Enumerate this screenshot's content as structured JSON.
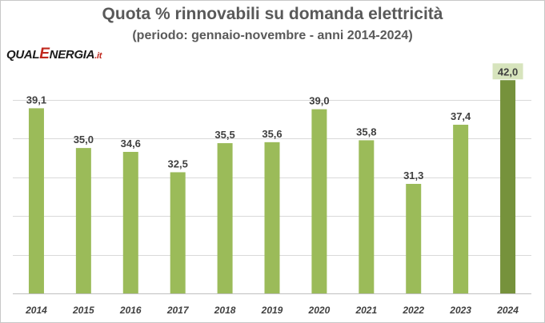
{
  "title": "Quota % rinnovabili su domanda elettricità",
  "subtitle": "(periodo: gennaio-novembre - anni 2014-2024)",
  "logo": {
    "part1": "QUAL",
    "part2": "E",
    "part3": "NERGIA",
    "part4": ".it"
  },
  "colors": {
    "bar": "#9bbb59",
    "highlight_bar": "#76923c",
    "highlight_label_bg": "#d7e4bd",
    "grid": "#d9d9d9",
    "text": "#404040"
  },
  "chart_data": {
    "type": "bar",
    "title": "Quota % rinnovabili su domanda elettricità",
    "subtitle": "(periodo: gennaio-novembre - anni 2014-2024)",
    "categories": [
      "2014",
      "2015",
      "2016",
      "2017",
      "2018",
      "2019",
      "2020",
      "2021",
      "2022",
      "2023",
      "2024"
    ],
    "values": [
      39.1,
      35.0,
      34.6,
      32.5,
      35.5,
      35.6,
      39.0,
      35.8,
      31.3,
      37.4,
      42.0
    ],
    "value_labels": [
      "39,1",
      "35,0",
      "34,6",
      "32,5",
      "35,5",
      "35,6",
      "39,0",
      "35,8",
      "31,3",
      "37,4",
      "42,0"
    ],
    "highlight_index": 10,
    "xlabel": "",
    "ylabel": "",
    "ylim": [
      20,
      44
    ],
    "grid": true,
    "legend": "none"
  }
}
